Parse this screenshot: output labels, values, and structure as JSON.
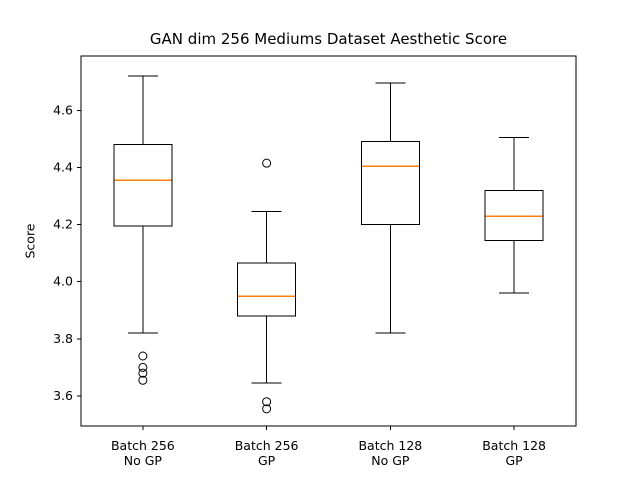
{
  "figure": {
    "title": "GAN dim 256 Mediums Dataset Aesthetic Score",
    "ylabel": "Score"
  },
  "chart_data": {
    "type": "boxplot",
    "title": "GAN dim 256 Mediums Dataset Aesthetic Score",
    "xlabel": "",
    "ylabel": "Score",
    "ylim": [
      3.495,
      4.79
    ],
    "yticks": [
      "3.6",
      "3.8",
      "4.0",
      "4.2",
      "4.4",
      "4.6"
    ],
    "grid": false,
    "legend": "none",
    "categories": [
      "Batch 256 No GP",
      "Batch 256 GP",
      "Batch 128 No GP",
      "Batch 128 GP"
    ],
    "series": [
      {
        "label_line1": "Batch 256",
        "label_line2": "No GP",
        "whisker_low": 3.82,
        "q1": 4.195,
        "median": 4.355,
        "q3": 4.48,
        "whisker_high": 4.72,
        "outliers": [
          3.74,
          3.7,
          3.68,
          3.655
        ]
      },
      {
        "label_line1": "Batch 256",
        "label_line2": "GP",
        "whisker_low": 3.645,
        "q1": 3.88,
        "median": 3.95,
        "q3": 4.065,
        "whisker_high": 4.245,
        "outliers": [
          4.415,
          3.58,
          3.555
        ]
      },
      {
        "label_line1": "Batch 128",
        "label_line2": "No GP",
        "whisker_low": 3.82,
        "q1": 4.2,
        "median": 4.405,
        "q3": 4.49,
        "whisker_high": 4.695,
        "outliers": []
      },
      {
        "label_line1": "Batch 128",
        "label_line2": "GP",
        "whisker_low": 3.96,
        "q1": 4.145,
        "median": 4.23,
        "q3": 4.32,
        "whisker_high": 4.505,
        "outliers": []
      }
    ],
    "colors": {
      "line": "#000000",
      "median": "#ff7f0e",
      "outlier_stroke": "#000000",
      "background": "#ffffff"
    }
  }
}
